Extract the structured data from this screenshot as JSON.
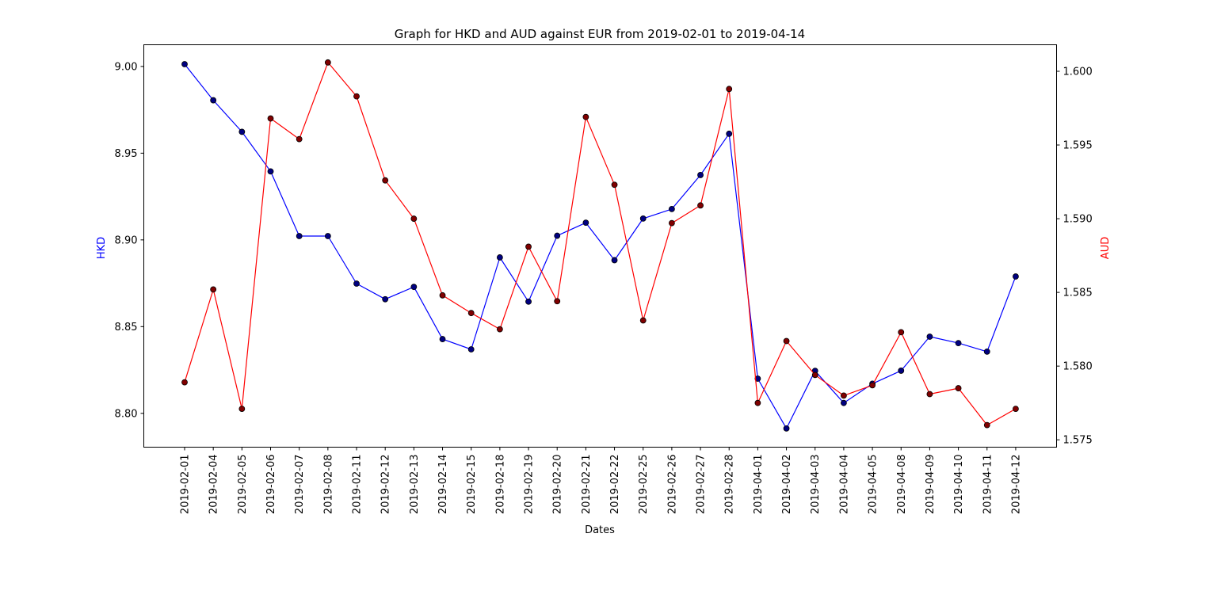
{
  "chart_data": {
    "type": "line",
    "title": "Graph for HKD and AUD against EUR from 2019-02-01 to 2019-04-14",
    "xlabel": "Dates",
    "ylabel_left": "HKD",
    "ylabel_right": "AUD",
    "categories": [
      "2019-02-01",
      "2019-02-04",
      "2019-02-05",
      "2019-02-06",
      "2019-02-07",
      "2019-02-08",
      "2019-02-11",
      "2019-02-12",
      "2019-02-13",
      "2019-02-14",
      "2019-02-15",
      "2019-02-18",
      "2019-02-19",
      "2019-02-20",
      "2019-02-21",
      "2019-02-22",
      "2019-02-25",
      "2019-02-26",
      "2019-02-27",
      "2019-02-28",
      "2019-04-01",
      "2019-04-02",
      "2019-04-03",
      "2019-04-04",
      "2019-04-05",
      "2019-04-08",
      "2019-04-09",
      "2019-04-10",
      "2019-04-11",
      "2019-04-12"
    ],
    "series": [
      {
        "name": "HKD",
        "axis": "left",
        "color": "#0000ff",
        "marker_color": "#000080",
        "values": [
          9.0013,
          8.9805,
          8.9623,
          8.9395,
          8.9022,
          8.9022,
          8.8748,
          8.8658,
          8.8729,
          8.8428,
          8.8369,
          8.8899,
          8.8644,
          8.9024,
          8.9099,
          8.8883,
          8.9123,
          8.9178,
          8.9374,
          8.9612,
          8.82,
          8.7913,
          8.8245,
          8.806,
          8.8171,
          8.8246,
          8.8442,
          8.8405,
          8.8356,
          8.8789
        ]
      },
      {
        "name": "AUD",
        "axis": "right",
        "color": "#ff0000",
        "marker_color": "#800000",
        "values": [
          1.5789,
          1.5852,
          1.5771,
          1.5968,
          1.5954,
          1.6006,
          1.5983,
          1.5926,
          1.59,
          1.5848,
          1.5836,
          1.5825,
          1.5881,
          1.5844,
          1.5969,
          1.5923,
          1.5831,
          1.5897,
          1.5909,
          1.5988,
          1.5775,
          1.5817,
          1.5794,
          1.578,
          1.5787,
          1.5823,
          1.5781,
          1.5785,
          1.576,
          1.5771
        ]
      }
    ],
    "ylim_left": [
      8.7805,
      9.0125
    ],
    "yticks_left": [
      "8.80",
      "8.85",
      "8.90",
      "8.95",
      "9.00"
    ],
    "ylim_right": [
      1.5745,
      1.6018
    ],
    "yticks_right": [
      "1.575",
      "1.580",
      "1.585",
      "1.590",
      "1.595",
      "1.600"
    ],
    "grid": false,
    "legend": "none"
  }
}
